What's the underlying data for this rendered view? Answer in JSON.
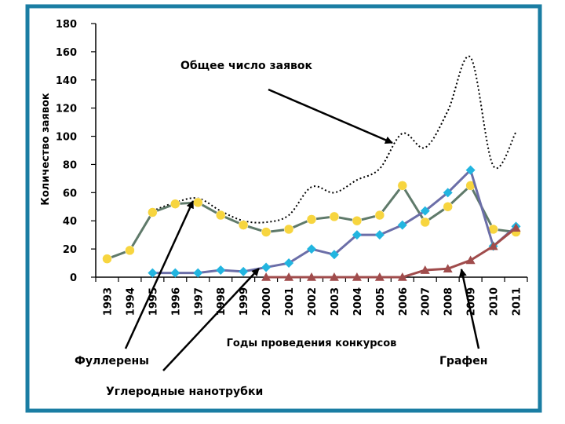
{
  "colors": {
    "frame": "#1a7da3",
    "axis": "#000000",
    "fullerenes_line": "#5f7a6a",
    "fullerenes_marker": "#f7d53f",
    "nanotubes_line": "#6b6ea8",
    "nanotubes_marker": "#22b5e0",
    "graphene_line": "#a04c4c",
    "graphene_marker": "#a04c4c",
    "total_line": "#000000"
  },
  "chart_data": {
    "type": "line",
    "title": "",
    "xlabel": "Годы проведения конкурсов",
    "ylabel": "Количество заявок",
    "ylim": [
      0,
      180
    ],
    "yticks": [
      0,
      20,
      40,
      60,
      80,
      100,
      120,
      140,
      160,
      180
    ],
    "grid": false,
    "legend": "none",
    "categories": [
      "1993",
      "1994",
      "1995",
      "1996",
      "1997",
      "1998",
      "1999",
      "2000",
      "2001",
      "2002",
      "2003",
      "2004",
      "2005",
      "2006",
      "2007",
      "2008",
      "2009",
      "2010",
      "2011"
    ],
    "series": [
      {
        "name": "Общее число заявок",
        "style": "dotted",
        "values": [
          null,
          null,
          47,
          53,
          56,
          47,
          40,
          39,
          44,
          64,
          60,
          69,
          77,
          102,
          92,
          118,
          156,
          79,
          103
        ]
      },
      {
        "name": "Фуллерены",
        "style": "circle",
        "values": [
          13,
          19,
          46,
          52,
          53,
          44,
          37,
          32,
          34,
          41,
          43,
          40,
          44,
          65,
          39,
          50,
          65,
          34,
          32
        ]
      },
      {
        "name": "Углеродные нанотрубки",
        "style": "diamond",
        "values": [
          null,
          null,
          3,
          3,
          3,
          5,
          4,
          7,
          10,
          20,
          16,
          30,
          30,
          37,
          47,
          60,
          76,
          22,
          36
        ]
      },
      {
        "name": "Графен",
        "style": "triangle",
        "values": [
          null,
          null,
          null,
          null,
          null,
          null,
          null,
          0,
          0,
          0,
          0,
          0,
          0,
          0,
          5,
          6,
          12,
          22,
          35
        ]
      }
    ],
    "annotations": [
      {
        "text": "Общее число заявок",
        "target_series": 0,
        "target_x": "2006"
      },
      {
        "text": "Фуллерены",
        "target_series": 1,
        "target_x": "1997"
      },
      {
        "text": "Углеродные нанотрубки",
        "target_series": 2,
        "target_x": "2000"
      },
      {
        "text": "Графен",
        "target_series": 3,
        "target_x": "2009"
      }
    ]
  }
}
